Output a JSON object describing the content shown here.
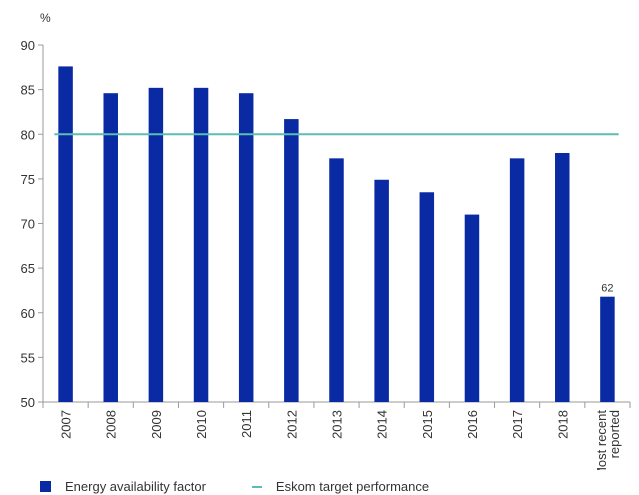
{
  "chart_data": {
    "type": "bar",
    "unit_label": "%",
    "categories": [
      "2007",
      "2008",
      "2009",
      "2010",
      "2011",
      "2012",
      "2013",
      "2014",
      "2015",
      "2016",
      "2017",
      "2018",
      "Most recent reported"
    ],
    "category_lines": [
      [
        "2007"
      ],
      [
        "2008"
      ],
      [
        "2009"
      ],
      [
        "2010"
      ],
      [
        "2011"
      ],
      [
        "2012"
      ],
      [
        "2013"
      ],
      [
        "2014"
      ],
      [
        "2015"
      ],
      [
        "2016"
      ],
      [
        "2017"
      ],
      [
        "2018"
      ],
      [
        "Most recent",
        "reported"
      ]
    ],
    "series": [
      {
        "name": "Energy availability factor",
        "values": [
          87.6,
          84.6,
          85.2,
          85.2,
          84.6,
          81.7,
          77.3,
          74.9,
          73.5,
          71.0,
          77.3,
          77.9,
          61.8
        ]
      },
      {
        "name": "Eskom target performance",
        "type": "line",
        "values": [
          80,
          80,
          80,
          80,
          80,
          80,
          80,
          80,
          80,
          80,
          80,
          80,
          80
        ]
      }
    ],
    "data_labels": [
      {
        "category": "Most recent reported",
        "text": "62"
      }
    ],
    "yticks": [
      "50",
      "55",
      "60",
      "65",
      "70",
      "75",
      "80",
      "85",
      "90"
    ],
    "ylim": [
      50,
      90
    ],
    "grid": false,
    "legend_position": "bottom-left",
    "colors": {
      "bars": "#0a2aa3",
      "target_line": "#5cbdb2",
      "axis": "#9a9a9a",
      "text": "#333333"
    }
  }
}
